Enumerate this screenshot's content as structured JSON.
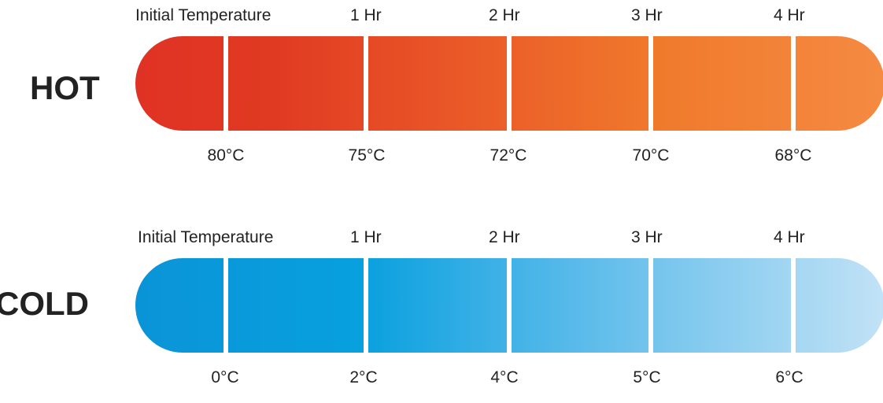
{
  "hot": {
    "label": "HOT",
    "time_labels": [
      "Initial Temperature",
      "1 Hr",
      "2 Hr",
      "3 Hr",
      "4 Hr"
    ],
    "temperatures": [
      "80°C",
      "75°C",
      "72°C",
      "70°C",
      "68°C"
    ],
    "colors": [
      "#e03224",
      "#f58a42"
    ]
  },
  "cold": {
    "label": "COLD",
    "time_labels": [
      "Initial Temperature",
      "1 Hr",
      "2 Hr",
      "3 Hr",
      "4 Hr"
    ],
    "temperatures": [
      "0°C",
      "2°C",
      "4°C",
      "5°C",
      "6°C"
    ],
    "colors": [
      "#0a94d8",
      "#c2e2f6"
    ]
  }
}
